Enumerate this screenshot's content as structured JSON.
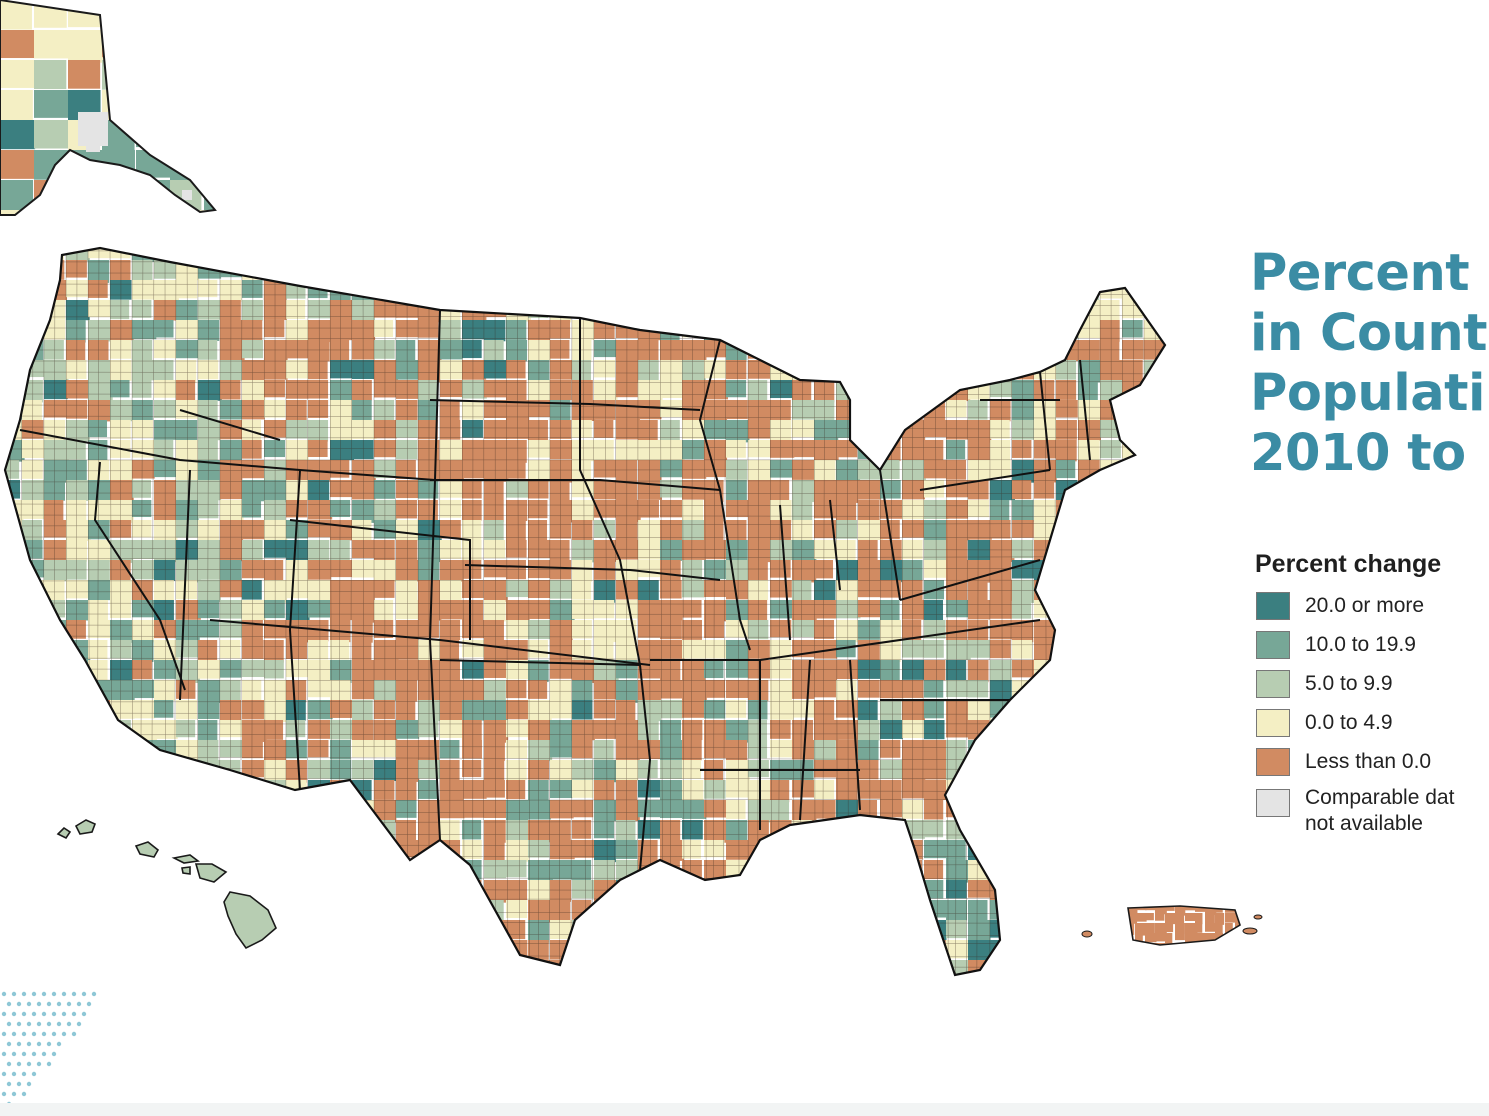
{
  "title": {
    "lines": [
      "Percent",
      "in Count",
      "Populati",
      "2010 to"
    ]
  },
  "legend": {
    "title": "Percent change",
    "items": [
      {
        "label": "20.0 or more",
        "color": "#3b7f80"
      },
      {
        "label": "10.0 to 19.9",
        "color": "#77a797"
      },
      {
        "label": "5.0 to 9.9",
        "color": "#b7cdb2"
      },
      {
        "label": "0.0 to 4.9",
        "color": "#f4efc4"
      },
      {
        "label": "Less than 0.0",
        "color": "#d18b62"
      }
    ],
    "not_available": {
      "label_line1": "Comparable dat",
      "label_line2": "not available",
      "color": "#e4e4e4"
    }
  },
  "colors": {
    "border": "#1a1a1a",
    "accent": "#3b8ca4"
  }
}
